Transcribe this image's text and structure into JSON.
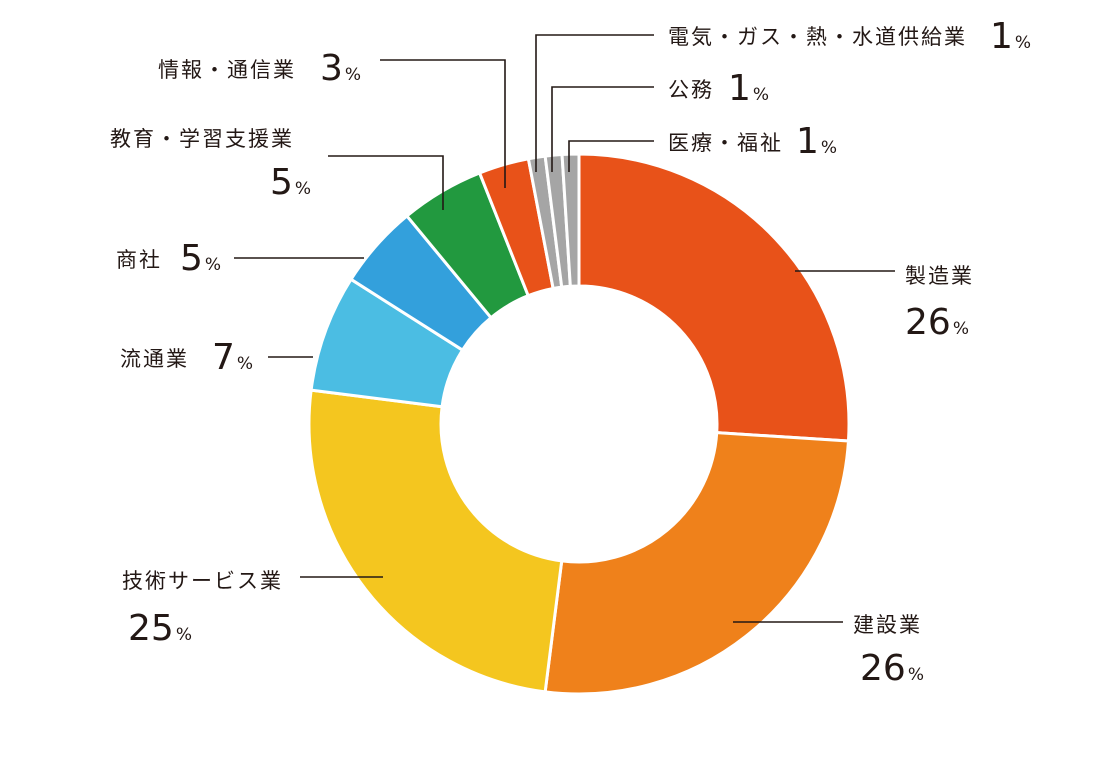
{
  "chart_data": {
    "type": "pie",
    "donut": true,
    "title": "",
    "unit": "%",
    "colors": {
      "edge": "#ffffff",
      "text": "#231815"
    },
    "slices": [
      {
        "label": "製造業",
        "value": 26,
        "color": "#e85219"
      },
      {
        "label": "建設業",
        "value": 26,
        "color": "#ef811b"
      },
      {
        "label": "技術サービス業",
        "value": 25,
        "color": "#f4c61f"
      },
      {
        "label": "流通業",
        "value": 7,
        "color": "#4bbde3"
      },
      {
        "label": "商社",
        "value": 5,
        "color": "#33a0dc"
      },
      {
        "label": "教育・学習支援業",
        "value": 5,
        "color": "#22993f"
      },
      {
        "label": "情報・通信業",
        "value": 3,
        "color": "#e85219"
      },
      {
        "label": "電気・ガス・熱・水道供給業",
        "value": 1,
        "color": "#a5a5a5"
      },
      {
        "label": "公務",
        "value": 1,
        "color": "#a5a5a5"
      },
      {
        "label": "医療・福祉",
        "value": 1,
        "color": "#a5a5a5"
      }
    ]
  }
}
